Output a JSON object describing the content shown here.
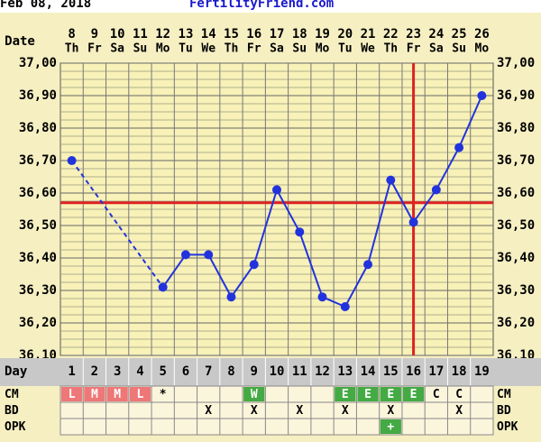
{
  "header": {
    "date": "Feb 08, 2018",
    "site": "FertilityFriend.com"
  },
  "chart_data": {
    "type": "line",
    "date_label": "Date",
    "dates": [
      "8",
      "9",
      "10",
      "11",
      "12",
      "13",
      "14",
      "15",
      "16",
      "17",
      "18",
      "19",
      "20",
      "21",
      "22",
      "23",
      "24",
      "25",
      "26"
    ],
    "weekdays": [
      "Th",
      "Fr",
      "Sa",
      "Su",
      "Mo",
      "Tu",
      "We",
      "Th",
      "Fr",
      "Sa",
      "Su",
      "Mo",
      "Tu",
      "We",
      "Th",
      "Fr",
      "Sa",
      "Su",
      "Mo"
    ],
    "day_label": "Day",
    "categories": [
      1,
      2,
      3,
      4,
      5,
      6,
      7,
      8,
      9,
      10,
      11,
      12,
      13,
      14,
      15,
      16,
      17,
      18,
      19
    ],
    "values": [
      36.7,
      null,
      null,
      null,
      36.31,
      36.41,
      36.41,
      36.28,
      36.38,
      36.61,
      36.48,
      36.28,
      36.25,
      36.38,
      36.64,
      36.51,
      36.61,
      36.74,
      36.9
    ],
    "color": "#2233dd",
    "ylim": [
      36.1,
      37.0
    ],
    "yticks": [
      {
        "value": 36.1,
        "label": "36,10"
      },
      {
        "value": 36.2,
        "label": "36,20"
      },
      {
        "value": 36.3,
        "label": "36,30"
      },
      {
        "value": 36.4,
        "label": "36,40"
      },
      {
        "value": 36.5,
        "label": "36,50"
      },
      {
        "value": 36.6,
        "label": "36,60"
      },
      {
        "value": 36.7,
        "label": "36,70"
      },
      {
        "value": 36.8,
        "label": "36,80"
      },
      {
        "value": 36.9,
        "label": "36,90"
      },
      {
        "value": 37.0,
        "label": "37,00"
      }
    ],
    "grid": true,
    "coverline": 36.57,
    "ovulation_day": 16,
    "marker_color": "#dd2222",
    "rows": [
      {
        "label": "CM",
        "cells": [
          "L",
          "M",
          "M",
          "L",
          "*",
          null,
          null,
          null,
          "W",
          null,
          null,
          null,
          "E",
          "E",
          "E",
          "E",
          "C",
          "C",
          null
        ],
        "colors": [
          "#ee7777",
          "#ee7777",
          "#ee7777",
          "#ee7777",
          null,
          null,
          null,
          null,
          "#44aa44",
          null,
          null,
          null,
          "#44aa44",
          "#44aa44",
          "#44aa44",
          "#44aa44",
          null,
          null,
          null
        ]
      },
      {
        "label": "BD",
        "cells": [
          null,
          null,
          null,
          null,
          null,
          null,
          "X",
          null,
          "X",
          null,
          "X",
          null,
          "X",
          null,
          "X",
          null,
          null,
          "X",
          null
        ],
        "colors": [
          null,
          null,
          null,
          null,
          null,
          null,
          null,
          null,
          null,
          null,
          null,
          null,
          null,
          null,
          null,
          null,
          null,
          null,
          null
        ]
      },
      {
        "label": "OPK",
        "cells": [
          null,
          null,
          null,
          null,
          null,
          null,
          null,
          null,
          null,
          null,
          null,
          null,
          null,
          null,
          "+",
          null,
          null,
          null,
          null
        ],
        "colors": [
          null,
          null,
          null,
          null,
          null,
          null,
          null,
          null,
          null,
          null,
          null,
          null,
          null,
          null,
          "#44aa44",
          null,
          null,
          null,
          null
        ]
      }
    ]
  }
}
